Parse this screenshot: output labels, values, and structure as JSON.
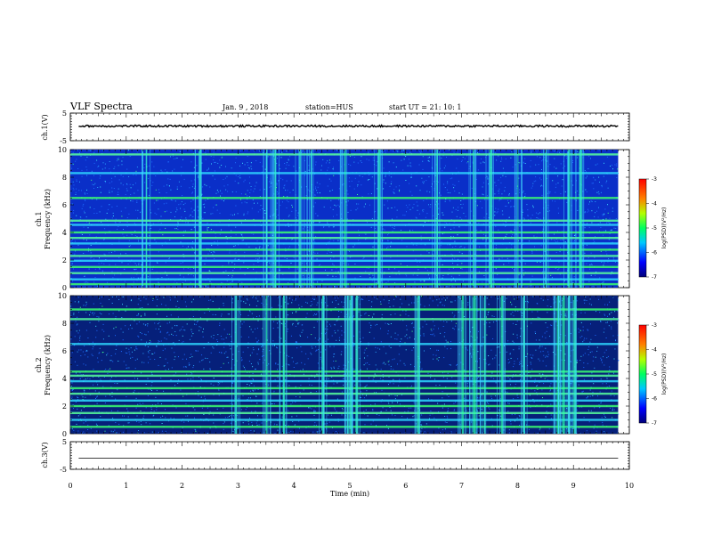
{
  "header": {
    "title": "VLF Spectra",
    "date": "Jan. 9 , 2018",
    "station": "station=HUS",
    "start": "start UT = 21: 10: 1"
  },
  "chart_data": [
    {
      "type": "line",
      "name": "ch1-waveform",
      "ylabel": "ch.1(V)",
      "xlim": [
        0,
        10
      ],
      "ylim": [
        -5,
        5
      ],
      "yticks": [
        "5",
        "-5"
      ],
      "x_end": 9.8,
      "level": 0.3,
      "noise_amplitude": 0.35
    },
    {
      "type": "heatmap",
      "name": "ch1-spectrogram",
      "ylabel": "ch.1 Frequency (kHz)",
      "ylabel_lines": [
        "ch.1",
        "Frequency (kHz)"
      ],
      "xlim": [
        0,
        10
      ],
      "ylim": [
        0,
        10
      ],
      "yticks": [
        "0",
        "2",
        "4",
        "6",
        "8",
        "10"
      ],
      "x_end": 9.8,
      "bands_khz": [
        0.25,
        0.6,
        1.05,
        1.5,
        1.95,
        2.3,
        2.75,
        3.2,
        3.6,
        4.0,
        4.55,
        4.85,
        6.5,
        8.3,
        9.65
      ],
      "burst_minutes": [
        1.35,
        2.3,
        3.5,
        3.65,
        4.1,
        4.3,
        4.9,
        5.5,
        6.55,
        7.2,
        7.5,
        8.0,
        8.5,
        8.9,
        9.1
      ],
      "colorbar": {
        "label": "log(PSD)(V²/Hz)",
        "range": [
          -7,
          -3
        ],
        "ticks": [
          "-3",
          "-4",
          "-5",
          "-6",
          "-7"
        ]
      }
    },
    {
      "type": "heatmap",
      "name": "ch2-spectrogram",
      "ylabel": "ch.2 Frequency (kHz)",
      "ylabel_lines": [
        "ch.2",
        "Frequency (kHz)"
      ],
      "xlim": [
        0,
        10
      ],
      "ylim": [
        0,
        10
      ],
      "yticks": [
        "0",
        "2",
        "4",
        "6",
        "8",
        "10"
      ],
      "x_end": 9.8,
      "bands_khz": [
        0.5,
        1.0,
        1.5,
        2.0,
        2.4,
        2.9,
        3.3,
        3.8,
        4.2,
        4.5,
        6.5,
        8.3,
        9.0
      ],
      "burst_minutes": [
        2.95,
        3.5,
        3.8,
        4.5,
        4.95,
        5.0,
        5.1,
        6.2,
        7.0,
        7.2,
        7.4,
        7.7,
        8.1,
        8.7,
        8.8,
        8.9,
        9.0
      ],
      "colorbar": {
        "label": "log(PSD)(V²/Hz)",
        "range": [
          -7,
          -3
        ],
        "ticks": [
          "-3",
          "-4",
          "-5",
          "-6",
          "-7"
        ]
      }
    },
    {
      "type": "line",
      "name": "ch3-waveform",
      "ylabel": "ch.3(V)",
      "xlim": [
        0,
        10
      ],
      "ylim": [
        -5,
        5
      ],
      "yticks": [
        "5",
        "-5"
      ],
      "x_end": 9.8,
      "level": -1.0,
      "noise_amplitude": 0
    }
  ],
  "xaxis": {
    "label": "Time (min)",
    "ticks": [
      "0",
      "1",
      "2",
      "3",
      "4",
      "5",
      "6",
      "7",
      "8",
      "9",
      "10"
    ]
  }
}
